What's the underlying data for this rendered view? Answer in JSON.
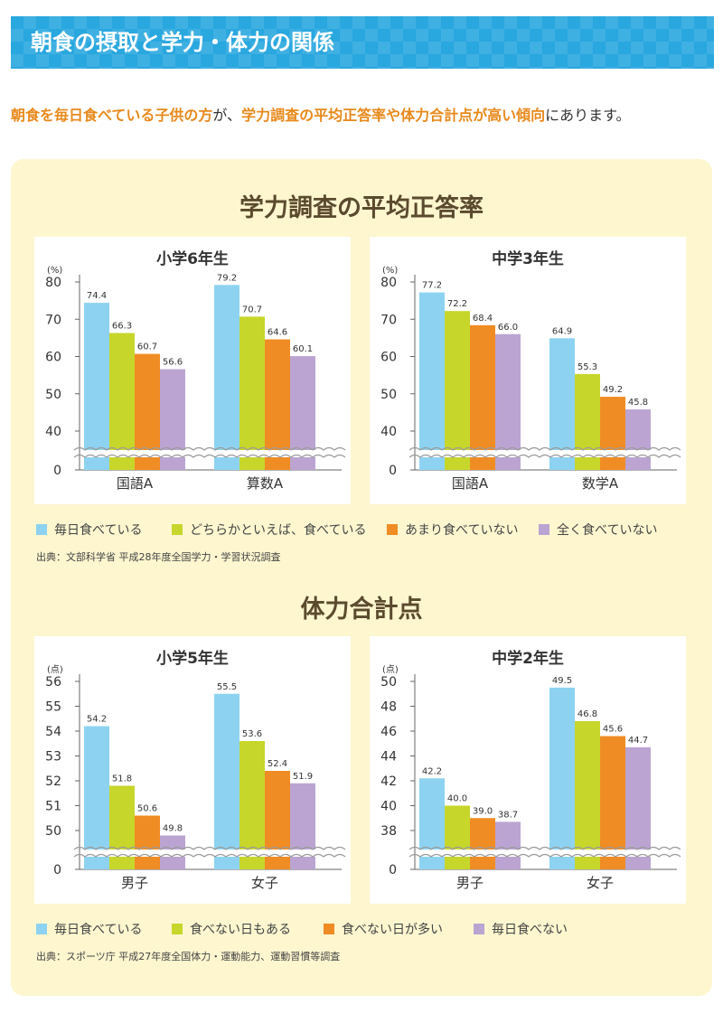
{
  "header": {
    "title": "朝食の摂取と学力・体力の関係"
  },
  "intro": {
    "part1": "朝食を毎日食べている子供の方",
    "part2": "が、",
    "part3": "学力調査の平均正答率や体力合計点が高い傾向",
    "part4": "にあります。"
  },
  "colors": {
    "daily": "#8dd3f1",
    "mostly": "#c7d62a",
    "rarely": "#f08c24",
    "never": "#bba4d2"
  },
  "section1": {
    "title": "学力調査の平均正答率",
    "legend": [
      "毎日食べている",
      "どちらかといえば、食べている",
      "あまり食べていない",
      "全く食べていない"
    ],
    "source": "出典：文部科学省 平成28年度全国学力・学習状況調査"
  },
  "section2": {
    "title": "体力合計点",
    "legend": [
      "毎日食べている",
      "食べない日もある",
      "食べない日が多い",
      "毎日食べない"
    ],
    "source": "出典：スポーツ庁 平成27年度全国体力・運動能力、運動習慣等調査"
  },
  "chart_data": [
    {
      "type": "bar",
      "title": "小学6年生",
      "unit": "(%)",
      "categories": [
        "国語A",
        "算数A"
      ],
      "series": [
        {
          "name": "毎日食べている",
          "values": [
            74.4,
            79.2
          ]
        },
        {
          "name": "どちらかといえば、食べている",
          "values": [
            66.3,
            70.7
          ]
        },
        {
          "name": "あまり食べていない",
          "values": [
            60.7,
            64.6
          ]
        },
        {
          "name": "全く食べていない",
          "values": [
            56.6,
            60.1
          ]
        }
      ],
      "yticks": [
        0,
        40,
        50,
        60,
        70,
        80
      ],
      "ylim": [
        40,
        80
      ],
      "axis_break": true
    },
    {
      "type": "bar",
      "title": "中学3年生",
      "unit": "(%)",
      "categories": [
        "国語A",
        "数学A"
      ],
      "series": [
        {
          "name": "毎日食べている",
          "values": [
            77.2,
            64.9
          ]
        },
        {
          "name": "どちらかといえば、食べている",
          "values": [
            72.2,
            55.3
          ]
        },
        {
          "name": "あまり食べていない",
          "values": [
            68.4,
            49.2
          ]
        },
        {
          "name": "全く食べていない",
          "values": [
            66.0,
            45.8
          ]
        }
      ],
      "yticks": [
        0,
        40,
        50,
        60,
        70,
        80
      ],
      "ylim": [
        40,
        80
      ],
      "axis_break": true
    },
    {
      "type": "bar",
      "title": "小学5年生",
      "unit": "(点)",
      "categories": [
        "男子",
        "女子"
      ],
      "series": [
        {
          "name": "毎日食べている",
          "values": [
            54.2,
            55.5
          ]
        },
        {
          "name": "食べない日もある",
          "values": [
            51.8,
            53.6
          ]
        },
        {
          "name": "食べない日が多い",
          "values": [
            50.6,
            52.4
          ]
        },
        {
          "name": "毎日食べない",
          "values": [
            49.8,
            51.9
          ]
        }
      ],
      "yticks": [
        0,
        50,
        51,
        52,
        53,
        54,
        55,
        56
      ],
      "ylim": [
        50,
        56
      ],
      "axis_break": true
    },
    {
      "type": "bar",
      "title": "中学2年生",
      "unit": "(点)",
      "categories": [
        "男子",
        "女子"
      ],
      "series": [
        {
          "name": "毎日食べている",
          "values": [
            42.2,
            49.5
          ]
        },
        {
          "name": "食べない日もある",
          "values": [
            40.0,
            46.8
          ]
        },
        {
          "name": "食べない日が多い",
          "values": [
            39.0,
            45.6
          ]
        },
        {
          "name": "毎日食べない",
          "values": [
            38.7,
            44.7
          ]
        }
      ],
      "yticks": [
        0,
        38,
        40,
        42,
        44,
        46,
        48,
        50
      ],
      "ylim": [
        38,
        50
      ],
      "axis_break": true
    }
  ]
}
